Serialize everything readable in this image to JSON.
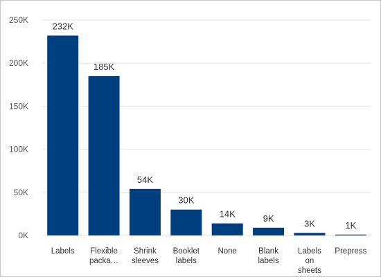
{
  "chart_data": {
    "type": "bar",
    "title": "",
    "xlabel": "",
    "ylabel": "",
    "ylim": [
      0,
      250000
    ],
    "yticks": [
      {
        "value": 0,
        "label": "0K"
      },
      {
        "value": 50000,
        "label": "50K"
      },
      {
        "value": 100000,
        "label": "100K"
      },
      {
        "value": 150000,
        "label": "150K"
      },
      {
        "value": 200000,
        "label": "200K"
      },
      {
        "value": 250000,
        "label": "250K"
      }
    ],
    "grid": true,
    "bar_color": "#003F7F",
    "categories": [
      [
        "Labels"
      ],
      [
        "Flexible",
        "packa…"
      ],
      [
        "Shrink",
        "sleeves"
      ],
      [
        "Booklet",
        "labels"
      ],
      [
        "None"
      ],
      [
        "Blank",
        "labels"
      ],
      [
        "Labels",
        "on",
        "sheets"
      ],
      [
        "Prepress"
      ]
    ],
    "values": [
      232000,
      185000,
      54000,
      30000,
      14000,
      9000,
      3000,
      1000
    ],
    "data_labels": [
      "232K",
      "185K",
      "54K",
      "30K",
      "14K",
      "9K",
      "3K",
      "1K"
    ]
  }
}
